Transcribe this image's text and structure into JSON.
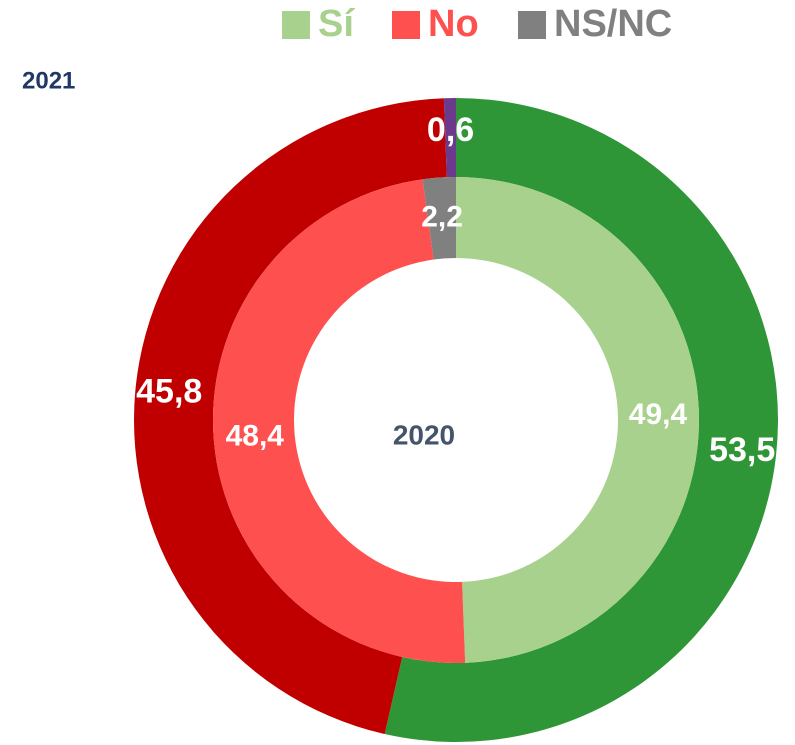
{
  "chart_data": {
    "type": "nested-donut",
    "categories": [
      "Sí",
      "No",
      "NS/NC"
    ],
    "legend_colors": [
      "#a9d18e",
      "#ff5050",
      "#808080"
    ],
    "series": [
      {
        "name": "2021",
        "colors": [
          "#2e9636",
          "#c00000",
          "#6b3a8c"
        ],
        "values": [
          53.5,
          45.8,
          0.6
        ],
        "value_labels": [
          "53,5",
          "45,8",
          "0,6"
        ]
      },
      {
        "name": "2020",
        "colors": [
          "#a9d18e",
          "#ff5050",
          "#808080"
        ],
        "values": [
          49.4,
          48.4,
          2.2
        ],
        "value_labels": [
          "49,4",
          "48,4",
          "2,2"
        ]
      }
    ]
  }
}
